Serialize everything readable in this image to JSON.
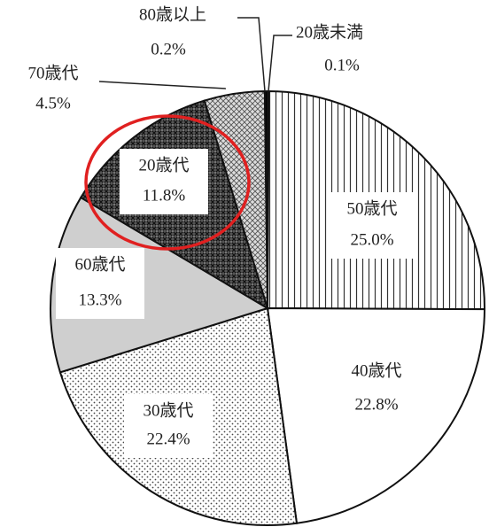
{
  "chart_data": {
    "type": "pie",
    "categories": [
      "20歳未満",
      "50歳代",
      "40歳代",
      "30歳代",
      "60歳代",
      "20歳代",
      "70歳代",
      "80歳以上"
    ],
    "values": [
      0.1,
      25,
      22.8,
      22.4,
      13.3,
      11.8,
      4.5,
      0.2
    ],
    "value_labels": [
      "0.1%",
      "25.0%",
      "22.8%",
      "22.4%",
      "13.3%",
      "11.8%",
      "4.5%",
      "0.2%"
    ]
  }
}
